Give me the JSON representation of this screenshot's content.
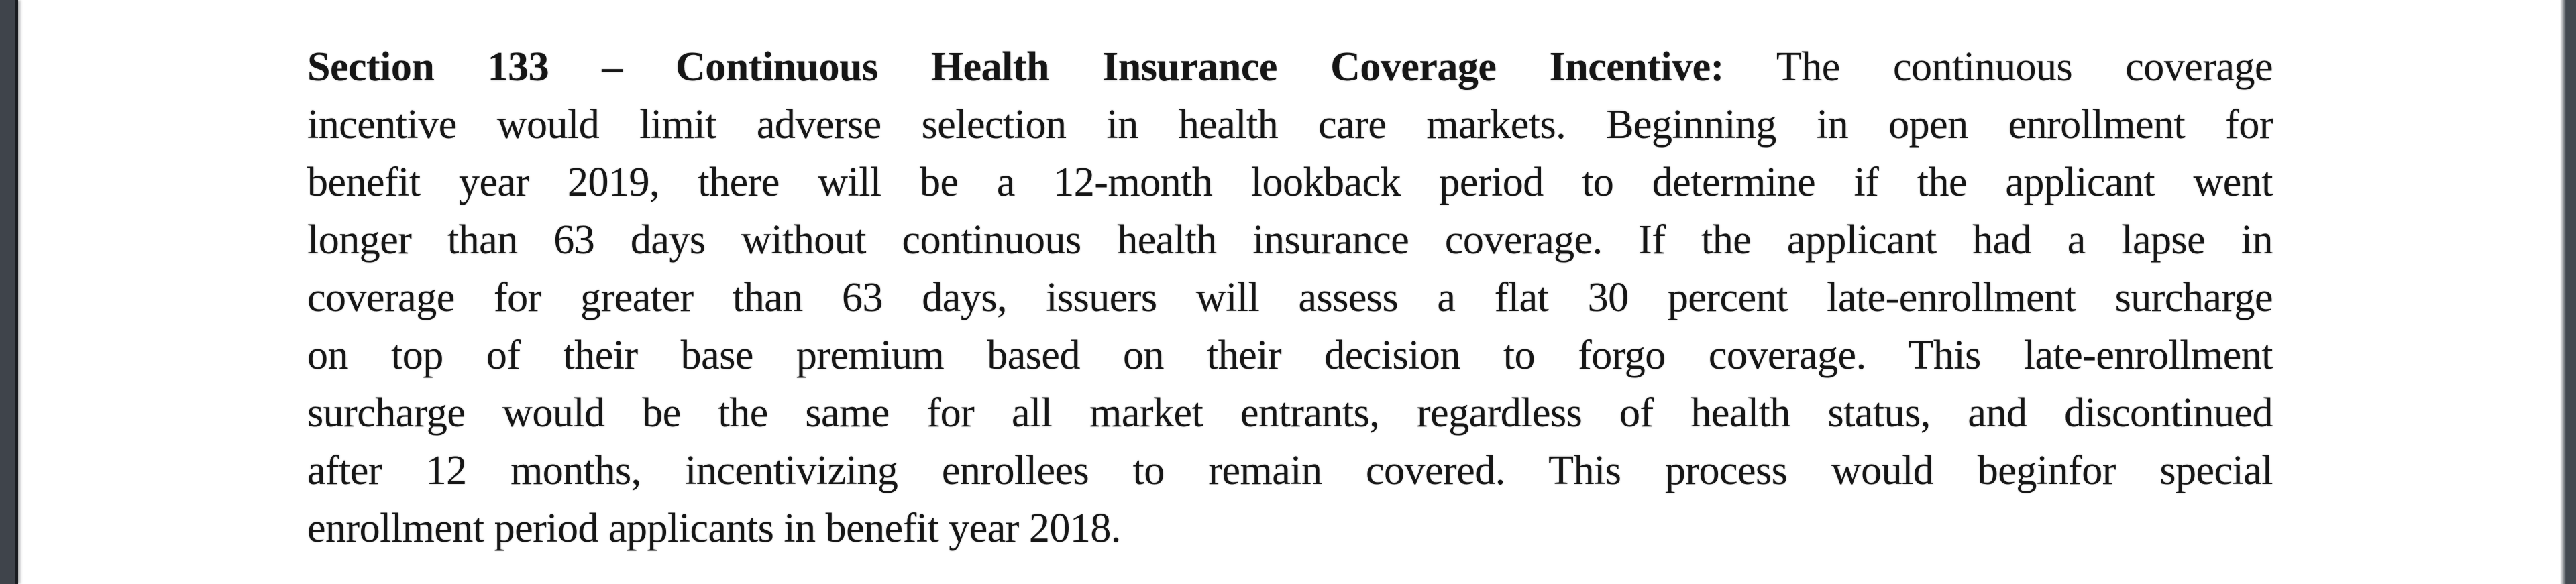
{
  "colors": {
    "page_background": "#ffffff",
    "text": "#161616",
    "left_edge_bar": "#3f444b",
    "left_edge_line": "#191c20",
    "right_edge_bar": "#434950"
  },
  "document": {
    "lines": [
      {
        "bold": "Section 133 – Continuous Health Insurance Coverage Incentive:",
        "regular": " The continuous coverage"
      },
      {
        "bold": "",
        "regular": "incentive would limit adverse selection in health care markets. Beginning in open enrollment for"
      },
      {
        "bold": "",
        "regular": "benefit year 2019, there will be a 12-month lookback period to determine if the applicant went"
      },
      {
        "bold": "",
        "regular": "longer than 63 days without continuous health insurance coverage. If the applicant had a lapse in"
      },
      {
        "bold": "",
        "regular": "coverage for greater than 63 days, issuers will assess a flat 30 percent late-enrollment surcharge"
      },
      {
        "bold": "",
        "regular": "on top of their base premium based on their decision to forgo coverage. This late-enrollment"
      },
      {
        "bold": "",
        "regular": "surcharge would be the same for all market entrants, regardless of health status, and discontinued"
      },
      {
        "bold": "",
        "regular": "after 12 months, incentivizing enrollees to remain covered. This process would beginfor special"
      },
      {
        "bold": "",
        "regular": "enrollment period applicants in benefit year 2018."
      }
    ]
  }
}
